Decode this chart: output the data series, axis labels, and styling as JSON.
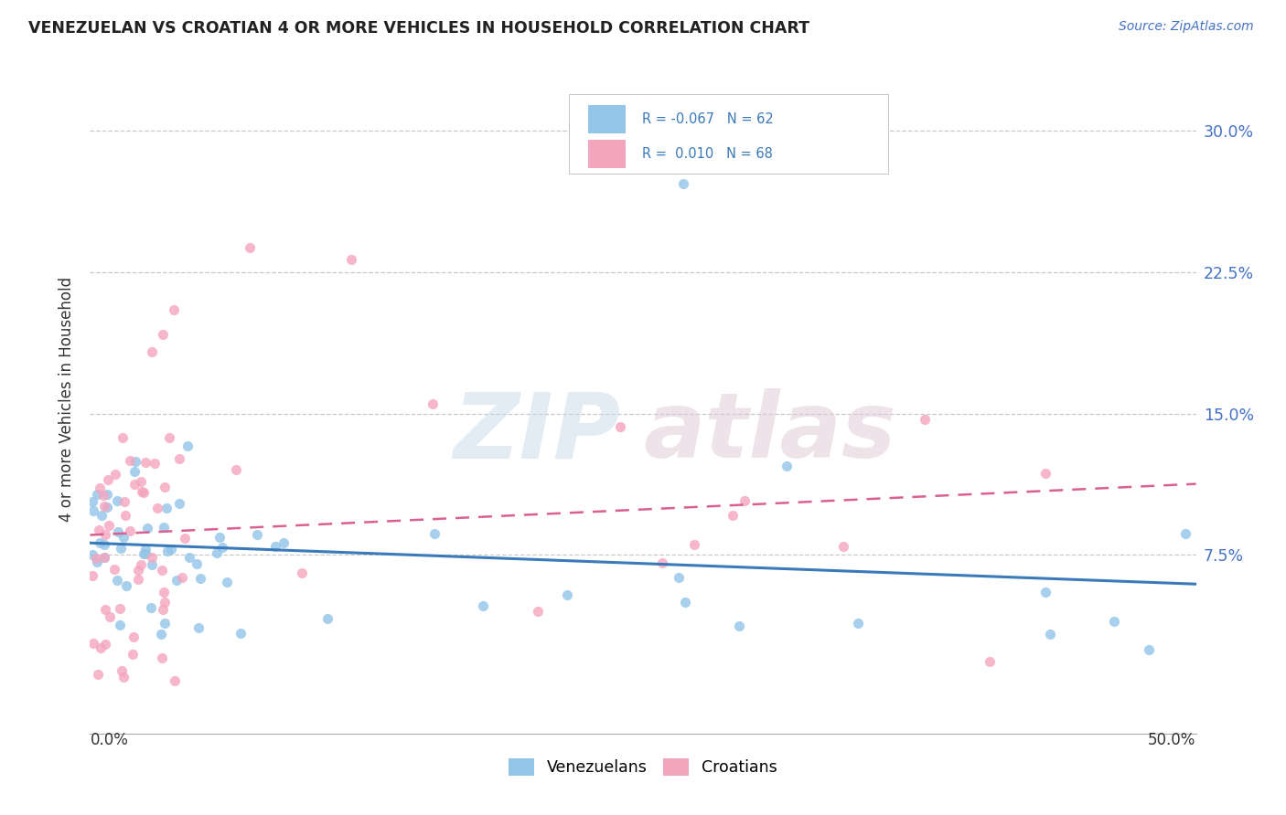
{
  "title": "VENEZUELAN VS CROATIAN 4 OR MORE VEHICLES IN HOUSEHOLD CORRELATION CHART",
  "source": "Source: ZipAtlas.com",
  "ylabel": "4 or more Vehicles in Household",
  "ytick_labels": [
    "7.5%",
    "15.0%",
    "22.5%",
    "30.0%"
  ],
  "ytick_vals": [
    0.075,
    0.15,
    0.225,
    0.3
  ],
  "xlim": [
    0.0,
    0.5
  ],
  "ylim": [
    -0.02,
    0.335
  ],
  "blue_color": "#92c5e8",
  "pink_color": "#f4a5be",
  "blue_line_color": "#3a7aba",
  "pink_line_color": "#d96090",
  "n_venezuelan": 62,
  "n_croatian": 68,
  "seed_ven": 10,
  "seed_cro": 20
}
